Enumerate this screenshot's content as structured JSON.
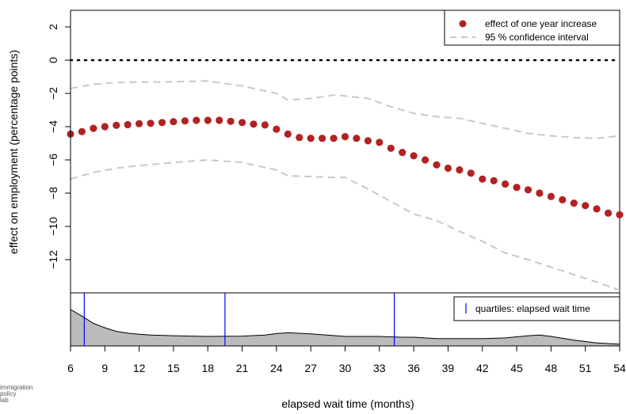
{
  "chart_data": {
    "type": "scatter",
    "xlabel": "elapsed wait time (months)",
    "ylabel": "effect on employment (percentage points)",
    "xlim": [
      6,
      54
    ],
    "ylim": [
      -14,
      3
    ],
    "x_ticks": [
      6,
      9,
      12,
      15,
      18,
      21,
      24,
      27,
      30,
      33,
      36,
      39,
      42,
      45,
      48,
      51,
      54
    ],
    "y_ticks": [
      -12,
      -10,
      -8,
      -6,
      -4,
      -2,
      0,
      2
    ],
    "y_tick_labels": [
      "−12",
      "−10",
      "−8",
      "−6",
      "−4",
      "−2",
      "0",
      "2"
    ],
    "grid": false,
    "legend_position": "top-right",
    "zero_line": 0,
    "series": [
      {
        "name": "effect of one year increase",
        "style": "points",
        "color": "#b22222",
        "x": [
          6,
          7,
          8,
          9,
          10,
          11,
          12,
          13,
          14,
          15,
          16,
          17,
          18,
          19,
          20,
          21,
          22,
          23,
          24,
          25,
          26,
          27,
          28,
          29,
          30,
          31,
          32,
          33,
          34,
          35,
          36,
          37,
          38,
          39,
          40,
          41,
          42,
          43,
          44,
          45,
          46,
          47,
          48,
          49,
          50,
          51,
          52,
          53,
          54
        ],
        "y": [
          -4.45,
          -4.3,
          -4.1,
          -4.0,
          -3.92,
          -3.88,
          -3.82,
          -3.8,
          -3.75,
          -3.7,
          -3.65,
          -3.62,
          -3.62,
          -3.62,
          -3.68,
          -3.75,
          -3.85,
          -3.9,
          -4.15,
          -4.45,
          -4.65,
          -4.7,
          -4.7,
          -4.7,
          -4.6,
          -4.7,
          -4.85,
          -4.95,
          -5.3,
          -5.55,
          -5.75,
          -6.0,
          -6.3,
          -6.5,
          -6.6,
          -6.8,
          -7.15,
          -7.25,
          -7.45,
          -7.65,
          -7.8,
          -8.0,
          -8.2,
          -8.4,
          -8.6,
          -8.75,
          -8.95,
          -9.2,
          -9.3
        ]
      },
      {
        "name": "95 % confidence interval",
        "style": "dashed",
        "color": "#c8c8c8",
        "x": [
          6,
          8,
          10,
          12,
          15,
          18,
          21,
          24,
          25,
          27,
          29,
          30,
          32,
          34,
          36,
          38,
          40,
          42,
          44,
          46,
          48,
          50,
          52,
          54
        ],
        "upper": [
          -1.7,
          -1.45,
          -1.35,
          -1.32,
          -1.3,
          -1.25,
          -1.55,
          -2.0,
          -2.4,
          -2.3,
          -2.1,
          -2.15,
          -2.3,
          -2.8,
          -3.2,
          -3.4,
          -3.5,
          -3.8,
          -4.1,
          -4.4,
          -4.55,
          -4.65,
          -4.7,
          -4.55
        ],
        "lower": [
          -7.15,
          -6.75,
          -6.5,
          -6.35,
          -6.15,
          -6.0,
          -6.15,
          -6.6,
          -6.95,
          -7.0,
          -7.05,
          -7.05,
          -7.75,
          -8.5,
          -9.25,
          -9.65,
          -10.3,
          -10.9,
          -11.6,
          -12.0,
          -12.45,
          -12.9,
          -13.35,
          -13.85
        ]
      }
    ],
    "density": {
      "x": [
        6,
        7,
        8,
        9,
        10,
        11,
        12,
        13,
        15,
        18,
        21,
        23,
        24,
        25,
        27,
        30,
        33,
        35,
        36,
        38,
        40,
        42,
        44,
        46,
        47,
        48,
        50,
        52,
        54
      ],
      "y": [
        1.0,
        0.82,
        0.62,
        0.5,
        0.4,
        0.35,
        0.32,
        0.3,
        0.28,
        0.26,
        0.27,
        0.3,
        0.34,
        0.36,
        0.33,
        0.26,
        0.26,
        0.24,
        0.24,
        0.2,
        0.2,
        0.2,
        0.22,
        0.28,
        0.3,
        0.26,
        0.16,
        0.08,
        0.05
      ],
      "fill": "#bbbbbb",
      "quartiles": [
        7.2,
        19.5,
        34.3
      ],
      "quartile_color": "#0000ff",
      "legend_label": "quartiles: elapsed wait time",
      "legend_position": "top-right"
    }
  },
  "logo": {
    "lines": [
      "immigration",
      "policy",
      "lab"
    ]
  }
}
